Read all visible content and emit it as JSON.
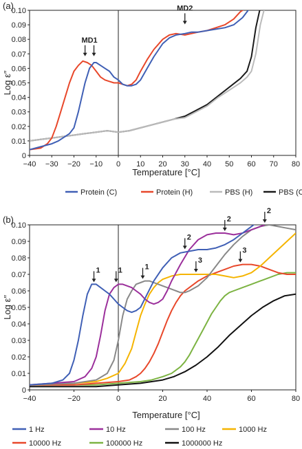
{
  "chart_data": [
    {
      "type": "line",
      "panel_label": "(a)",
      "xlabel": "Temperature [°C]",
      "ylabel": "Log ε″",
      "xlim": [
        -40,
        80
      ],
      "ylim": [
        0,
        0.1
      ],
      "xticks": [
        -40,
        -30,
        -20,
        -10,
        0,
        10,
        20,
        30,
        40,
        50,
        60,
        70,
        80
      ],
      "yticks": [
        0,
        0.01,
        0.02,
        0.03,
        0.04,
        0.05,
        0.06,
        0.07,
        0.08,
        0.09,
        0.1
      ],
      "ytick_labels": [
        "0",
        "0.01",
        "0.02",
        "0.03",
        "0.04",
        "0.05",
        "0.06",
        "0.07",
        "0.08",
        "0.09",
        "0.10"
      ],
      "legend_position": "bottom",
      "series": [
        {
          "name": "Protein (C)",
          "color": "#3f5fb5",
          "x": [
            -40,
            -35,
            -30,
            -27,
            -25,
            -22,
            -20,
            -18,
            -15,
            -13,
            -11,
            -10,
            -8,
            -6,
            -4,
            -2,
            0,
            2,
            4,
            6,
            8,
            10,
            13,
            16,
            20,
            23,
            26,
            30,
            33,
            36,
            40,
            44,
            48,
            52,
            56,
            58,
            60
          ],
          "y": [
            0.004,
            0.006,
            0.008,
            0.01,
            0.012,
            0.015,
            0.019,
            0.03,
            0.05,
            0.06,
            0.064,
            0.064,
            0.062,
            0.06,
            0.058,
            0.054,
            0.052,
            0.049,
            0.048,
            0.048,
            0.049,
            0.052,
            0.06,
            0.068,
            0.077,
            0.081,
            0.083,
            0.084,
            0.085,
            0.085,
            0.086,
            0.087,
            0.088,
            0.09,
            0.095,
            0.099,
            0.103
          ]
        },
        {
          "name": "Protein (H)",
          "color": "#e8472a",
          "x": [
            -40,
            -35,
            -32,
            -30,
            -28,
            -26,
            -24,
            -22,
            -20,
            -18,
            -16,
            -14,
            -12,
            -10,
            -8,
            -6,
            -4,
            -2,
            0,
            2,
            4,
            6,
            8,
            10,
            13,
            16,
            20,
            23,
            26,
            30,
            33,
            36,
            40,
            44,
            48,
            52,
            55,
            57,
            59
          ],
          "y": [
            0.004,
            0.005,
            0.008,
            0.012,
            0.02,
            0.03,
            0.04,
            0.05,
            0.058,
            0.062,
            0.065,
            0.064,
            0.062,
            0.058,
            0.054,
            0.052,
            0.051,
            0.05,
            0.05,
            0.049,
            0.048,
            0.049,
            0.052,
            0.058,
            0.066,
            0.073,
            0.08,
            0.083,
            0.084,
            0.083,
            0.084,
            0.085,
            0.086,
            0.088,
            0.09,
            0.094,
            0.099,
            0.101,
            0.103
          ]
        },
        {
          "name": "PBS (H)",
          "color": "#bbbbbb",
          "x": [
            -40,
            -35,
            -30,
            -25,
            -20,
            -15,
            -10,
            -5,
            0,
            5,
            10,
            15,
            20,
            25,
            30,
            35,
            40,
            45,
            50,
            55,
            58,
            60,
            62,
            64,
            66
          ],
          "y": [
            0.01,
            0.011,
            0.012,
            0.013,
            0.014,
            0.015,
            0.016,
            0.017,
            0.016,
            0.017,
            0.019,
            0.021,
            0.023,
            0.025,
            0.026,
            0.03,
            0.034,
            0.04,
            0.045,
            0.05,
            0.054,
            0.058,
            0.07,
            0.09,
            0.102
          ]
        },
        {
          "name": "PBS (C)",
          "color": "#1a1a1a",
          "x": [
            -40,
            -35,
            -30,
            -25,
            -20,
            -15,
            -10,
            -5,
            0,
            5,
            10,
            15,
            20,
            25,
            30,
            35,
            40,
            45,
            50,
            55,
            58,
            60,
            62,
            64
          ],
          "y": [
            0.01,
            0.011,
            0.012,
            0.013,
            0.014,
            0.015,
            0.016,
            0.017,
            0.016,
            0.017,
            0.019,
            0.021,
            0.023,
            0.025,
            0.027,
            0.031,
            0.035,
            0.041,
            0.047,
            0.053,
            0.058,
            0.068,
            0.088,
            0.102
          ]
        }
      ],
      "annotations": [
        {
          "text": "MD1",
          "x": -13,
          "y": 0.075,
          "arrows_at": [
            -15,
            -11
          ]
        },
        {
          "text": "MD2",
          "x": 30,
          "y": 0.097,
          "arrows_at": [
            30
          ]
        }
      ]
    },
    {
      "type": "line",
      "panel_label": "(b)",
      "xlabel": "Temperature [°C]",
      "ylabel": "Log ε″",
      "xlim": [
        -40,
        80
      ],
      "ylim": [
        0,
        0.1
      ],
      "xticks": [
        -40,
        -20,
        0,
        20,
        40,
        60,
        80
      ],
      "yticks": [
        0,
        0.01,
        0.02,
        0.03,
        0.04,
        0.05,
        0.06,
        0.07,
        0.08,
        0.09,
        0.1
      ],
      "ytick_labels": [
        "0",
        "0.01",
        "0.02",
        "0.03",
        "0.04",
        "0.05",
        "0.06",
        "0.07",
        "0.08",
        "0.09",
        "0.10"
      ],
      "legend_position": "bottom",
      "series": [
        {
          "name": "1 Hz",
          "color": "#3f5fb5",
          "x": [
            -40,
            -30,
            -25,
            -22,
            -20,
            -18,
            -16,
            -14,
            -12,
            -10,
            -8,
            -6,
            -4,
            -2,
            0,
            2,
            4,
            6,
            8,
            10,
            13,
            16,
            20,
            24,
            28,
            32,
            36,
            40,
            44,
            48,
            52,
            56,
            60,
            62
          ],
          "y": [
            0.003,
            0.004,
            0.006,
            0.01,
            0.018,
            0.03,
            0.045,
            0.058,
            0.064,
            0.064,
            0.062,
            0.06,
            0.058,
            0.055,
            0.052,
            0.05,
            0.048,
            0.047,
            0.048,
            0.05,
            0.058,
            0.066,
            0.074,
            0.08,
            0.083,
            0.084,
            0.085,
            0.085,
            0.086,
            0.088,
            0.091,
            0.095,
            0.099,
            0.101
          ]
        },
        {
          "name": "10 Hz",
          "color": "#9b2f9b",
          "x": [
            -40,
            -30,
            -20,
            -15,
            -12,
            -10,
            -8,
            -6,
            -4,
            -2,
            0,
            2,
            4,
            6,
            8,
            10,
            12,
            14,
            16,
            18,
            20,
            22,
            24,
            28,
            32,
            36,
            40,
            44,
            48,
            52,
            56,
            60,
            64,
            66
          ],
          "y": [
            0.003,
            0.004,
            0.005,
            0.008,
            0.013,
            0.02,
            0.033,
            0.048,
            0.058,
            0.062,
            0.064,
            0.064,
            0.063,
            0.062,
            0.06,
            0.058,
            0.055,
            0.053,
            0.052,
            0.053,
            0.055,
            0.06,
            0.066,
            0.076,
            0.085,
            0.091,
            0.094,
            0.095,
            0.095,
            0.094,
            0.095,
            0.097,
            0.099,
            0.1
          ]
        },
        {
          "name": "100 Hz",
          "color": "#888888",
          "x": [
            -40,
            -20,
            -10,
            -5,
            -2,
            0,
            2,
            4,
            6,
            8,
            10,
            12,
            14,
            16,
            18,
            20,
            22,
            24,
            26,
            28,
            30,
            32,
            36,
            40,
            44,
            48,
            52,
            56,
            60,
            64,
            68,
            72,
            76,
            80
          ],
          "y": [
            0.003,
            0.004,
            0.006,
            0.01,
            0.018,
            0.03,
            0.045,
            0.055,
            0.06,
            0.064,
            0.065,
            0.066,
            0.066,
            0.065,
            0.064,
            0.063,
            0.062,
            0.061,
            0.06,
            0.059,
            0.059,
            0.06,
            0.063,
            0.068,
            0.075,
            0.082,
            0.088,
            0.093,
            0.097,
            0.099,
            0.1,
            0.099,
            0.098,
            0.097
          ]
        },
        {
          "name": "1000 Hz",
          "color": "#f5b400",
          "x": [
            -40,
            -20,
            -10,
            -5,
            0,
            3,
            6,
            8,
            10,
            12,
            14,
            16,
            18,
            20,
            24,
            28,
            32,
            36,
            40,
            44,
            48,
            52,
            56,
            60,
            64,
            68,
            72,
            76,
            80
          ],
          "y": [
            0.003,
            0.004,
            0.005,
            0.007,
            0.01,
            0.016,
            0.025,
            0.035,
            0.045,
            0.052,
            0.058,
            0.062,
            0.065,
            0.067,
            0.069,
            0.07,
            0.07,
            0.07,
            0.07,
            0.07,
            0.069,
            0.068,
            0.069,
            0.071,
            0.075,
            0.08,
            0.085,
            0.09,
            0.095
          ]
        },
        {
          "name": "10000 Hz",
          "color": "#e8472a",
          "x": [
            -40,
            -20,
            -10,
            0,
            5,
            8,
            10,
            12,
            14,
            16,
            18,
            20,
            22,
            24,
            26,
            28,
            30,
            32,
            36,
            40,
            44,
            48,
            52,
            56,
            60,
            64,
            68,
            72,
            76,
            80
          ],
          "y": [
            0.003,
            0.003,
            0.004,
            0.005,
            0.006,
            0.008,
            0.01,
            0.013,
            0.017,
            0.022,
            0.028,
            0.035,
            0.042,
            0.048,
            0.053,
            0.057,
            0.06,
            0.062,
            0.066,
            0.069,
            0.071,
            0.073,
            0.075,
            0.076,
            0.076,
            0.075,
            0.073,
            0.071,
            0.07,
            0.07
          ]
        },
        {
          "name": "100000 Hz",
          "color": "#7cb342",
          "x": [
            -40,
            -20,
            -10,
            0,
            10,
            15,
            20,
            24,
            28,
            30,
            32,
            34,
            36,
            38,
            40,
            42,
            44,
            46,
            48,
            50,
            52,
            56,
            60,
            64,
            68,
            72,
            76,
            80
          ],
          "y": [
            0.003,
            0.003,
            0.003,
            0.004,
            0.005,
            0.006,
            0.008,
            0.01,
            0.014,
            0.017,
            0.021,
            0.026,
            0.031,
            0.036,
            0.041,
            0.046,
            0.05,
            0.054,
            0.057,
            0.059,
            0.06,
            0.062,
            0.064,
            0.066,
            0.068,
            0.07,
            0.071,
            0.071
          ]
        },
        {
          "name": "1000000 Hz",
          "color": "#111111",
          "x": [
            -40,
            -20,
            -10,
            0,
            10,
            20,
            25,
            30,
            35,
            40,
            45,
            50,
            55,
            60,
            65,
            70,
            75,
            80
          ],
          "y": [
            0.002,
            0.002,
            0.002,
            0.003,
            0.004,
            0.006,
            0.008,
            0.011,
            0.015,
            0.02,
            0.026,
            0.033,
            0.039,
            0.045,
            0.05,
            0.054,
            0.057,
            0.058
          ]
        }
      ],
      "annotations": [
        {
          "text": "1",
          "x": -11,
          "y": 0.064
        },
        {
          "text": "1",
          "x": -1,
          "y": 0.064
        },
        {
          "text": "1",
          "x": 11,
          "y": 0.066
        },
        {
          "text": "2",
          "x": 30,
          "y": 0.084
        },
        {
          "text": "2",
          "x": 48,
          "y": 0.095
        },
        {
          "text": "2",
          "x": 66,
          "y": 0.1
        },
        {
          "text": "3",
          "x": 35,
          "y": 0.07
        },
        {
          "text": "3",
          "x": 55,
          "y": 0.076
        }
      ]
    }
  ]
}
